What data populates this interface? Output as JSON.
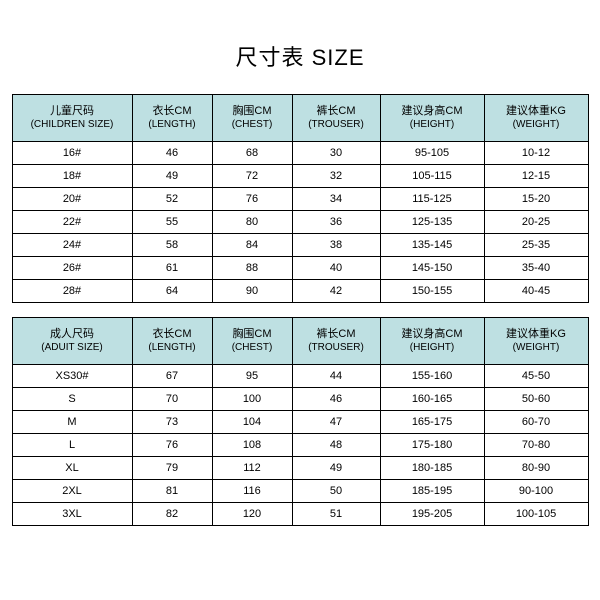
{
  "title": "尺寸表 SIZE",
  "colors": {
    "header_bg": "#bee0e2",
    "row_bg": "#ffffff",
    "border": "#000000",
    "text": "#000000"
  },
  "columns": [
    {
      "child_cn": "儿童尺码",
      "child_en": "(CHILDREN SIZE)",
      "adult_cn": "成人尺码",
      "adult_en": "(ADUIT SIZE)"
    },
    {
      "child_cn": "衣长CM",
      "child_en": "(LENGTH)",
      "adult_cn": "衣长CM",
      "adult_en": "(LENGTH)"
    },
    {
      "child_cn": "胸围CM",
      "child_en": "(CHEST)",
      "adult_cn": "胸围CM",
      "adult_en": "(CHEST)"
    },
    {
      "child_cn": "裤长CM",
      "child_en": "(TROUSER)",
      "adult_cn": "裤长CM",
      "adult_en": "(TROUSER)"
    },
    {
      "child_cn": "建议身高CM",
      "child_en": "(HEIGHT)",
      "adult_cn": "建议身高CM",
      "adult_en": "(HEIGHT)"
    },
    {
      "child_cn": "建议体重KG",
      "child_en": "(WEIGHT)",
      "adult_cn": "建议体重KG",
      "adult_en": "(WEIGHT)"
    }
  ],
  "children_rows": [
    [
      "16#",
      "46",
      "68",
      "30",
      "95-105",
      "10-12"
    ],
    [
      "18#",
      "49",
      "72",
      "32",
      "105-115",
      "12-15"
    ],
    [
      "20#",
      "52",
      "76",
      "34",
      "115-125",
      "15-20"
    ],
    [
      "22#",
      "55",
      "80",
      "36",
      "125-135",
      "20-25"
    ],
    [
      "24#",
      "58",
      "84",
      "38",
      "135-145",
      "25-35"
    ],
    [
      "26#",
      "61",
      "88",
      "40",
      "145-150",
      "35-40"
    ],
    [
      "28#",
      "64",
      "90",
      "42",
      "150-155",
      "40-45"
    ]
  ],
  "adult_rows": [
    [
      "XS30#",
      "67",
      "95",
      "44",
      "155-160",
      "45-50"
    ],
    [
      "S",
      "70",
      "100",
      "46",
      "160-165",
      "50-60"
    ],
    [
      "M",
      "73",
      "104",
      "47",
      "165-175",
      "60-70"
    ],
    [
      "L",
      "76",
      "108",
      "48",
      "175-180",
      "70-80"
    ],
    [
      "XL",
      "79",
      "112",
      "49",
      "180-185",
      "80-90"
    ],
    [
      "2XL",
      "81",
      "116",
      "50",
      "185-195",
      "90-100"
    ],
    [
      "3XL",
      "82",
      "120",
      "51",
      "195-205",
      "100-105"
    ]
  ]
}
